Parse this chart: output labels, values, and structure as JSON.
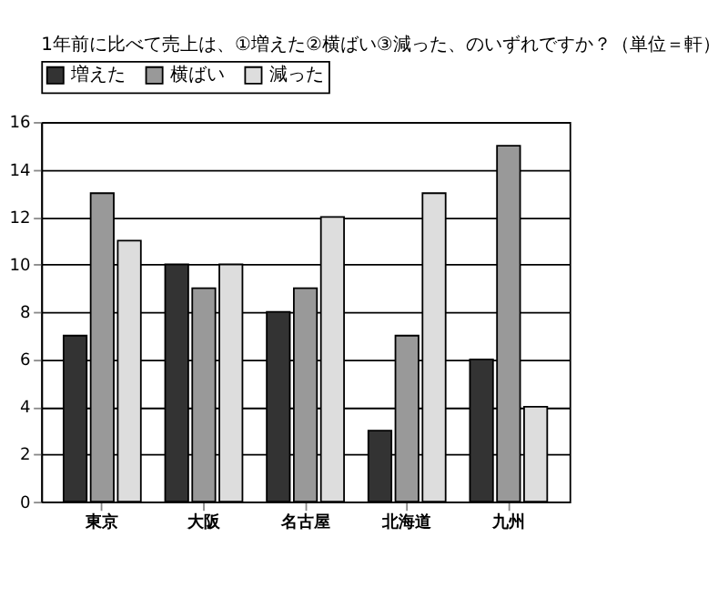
{
  "chart_data": {
    "type": "bar",
    "title": "1年前に比べて売上は、①増えた②横ばい③減った、のいずれですか？（単位＝軒）",
    "categories": [
      "東京",
      "大阪",
      "名古屋",
      "北海道",
      "九州"
    ],
    "series": [
      {
        "name": "増えた",
        "color": "#333333",
        "values": [
          7,
          10,
          8,
          3,
          6
        ]
      },
      {
        "name": "横ばい",
        "color": "#999999",
        "values": [
          13,
          9,
          9,
          7,
          15
        ]
      },
      {
        "name": "減った",
        "color": "#dddddd",
        "values": [
          11,
          10,
          12,
          13,
          4
        ]
      }
    ],
    "ylim": [
      0,
      16
    ],
    "yticks": [
      0,
      2,
      4,
      6,
      8,
      10,
      12,
      14,
      16
    ],
    "grid": "y",
    "legend": "top"
  }
}
